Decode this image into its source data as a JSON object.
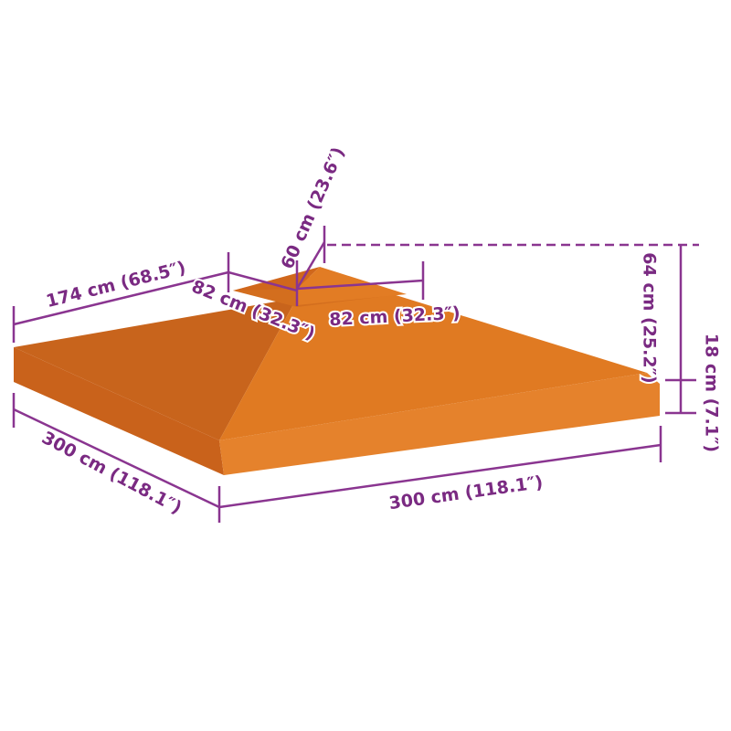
{
  "colors": {
    "canopy": "#e07820",
    "canopy_shade": "#c9621b",
    "dimension_lines": "#7a2a82"
  },
  "dimensions": {
    "overhang_side": "174 cm (68.5″)",
    "top_tier_height": "60 cm (23.6″)",
    "top_tier_depth": "82 cm (32.3″)",
    "top_tier_width": "82 cm (32.3″)",
    "total_height": "64 cm (25.2″)",
    "valance_height": "18 cm (7.1″)",
    "depth": "300 cm (118.1″)",
    "width": "300 cm (118.1″)"
  }
}
